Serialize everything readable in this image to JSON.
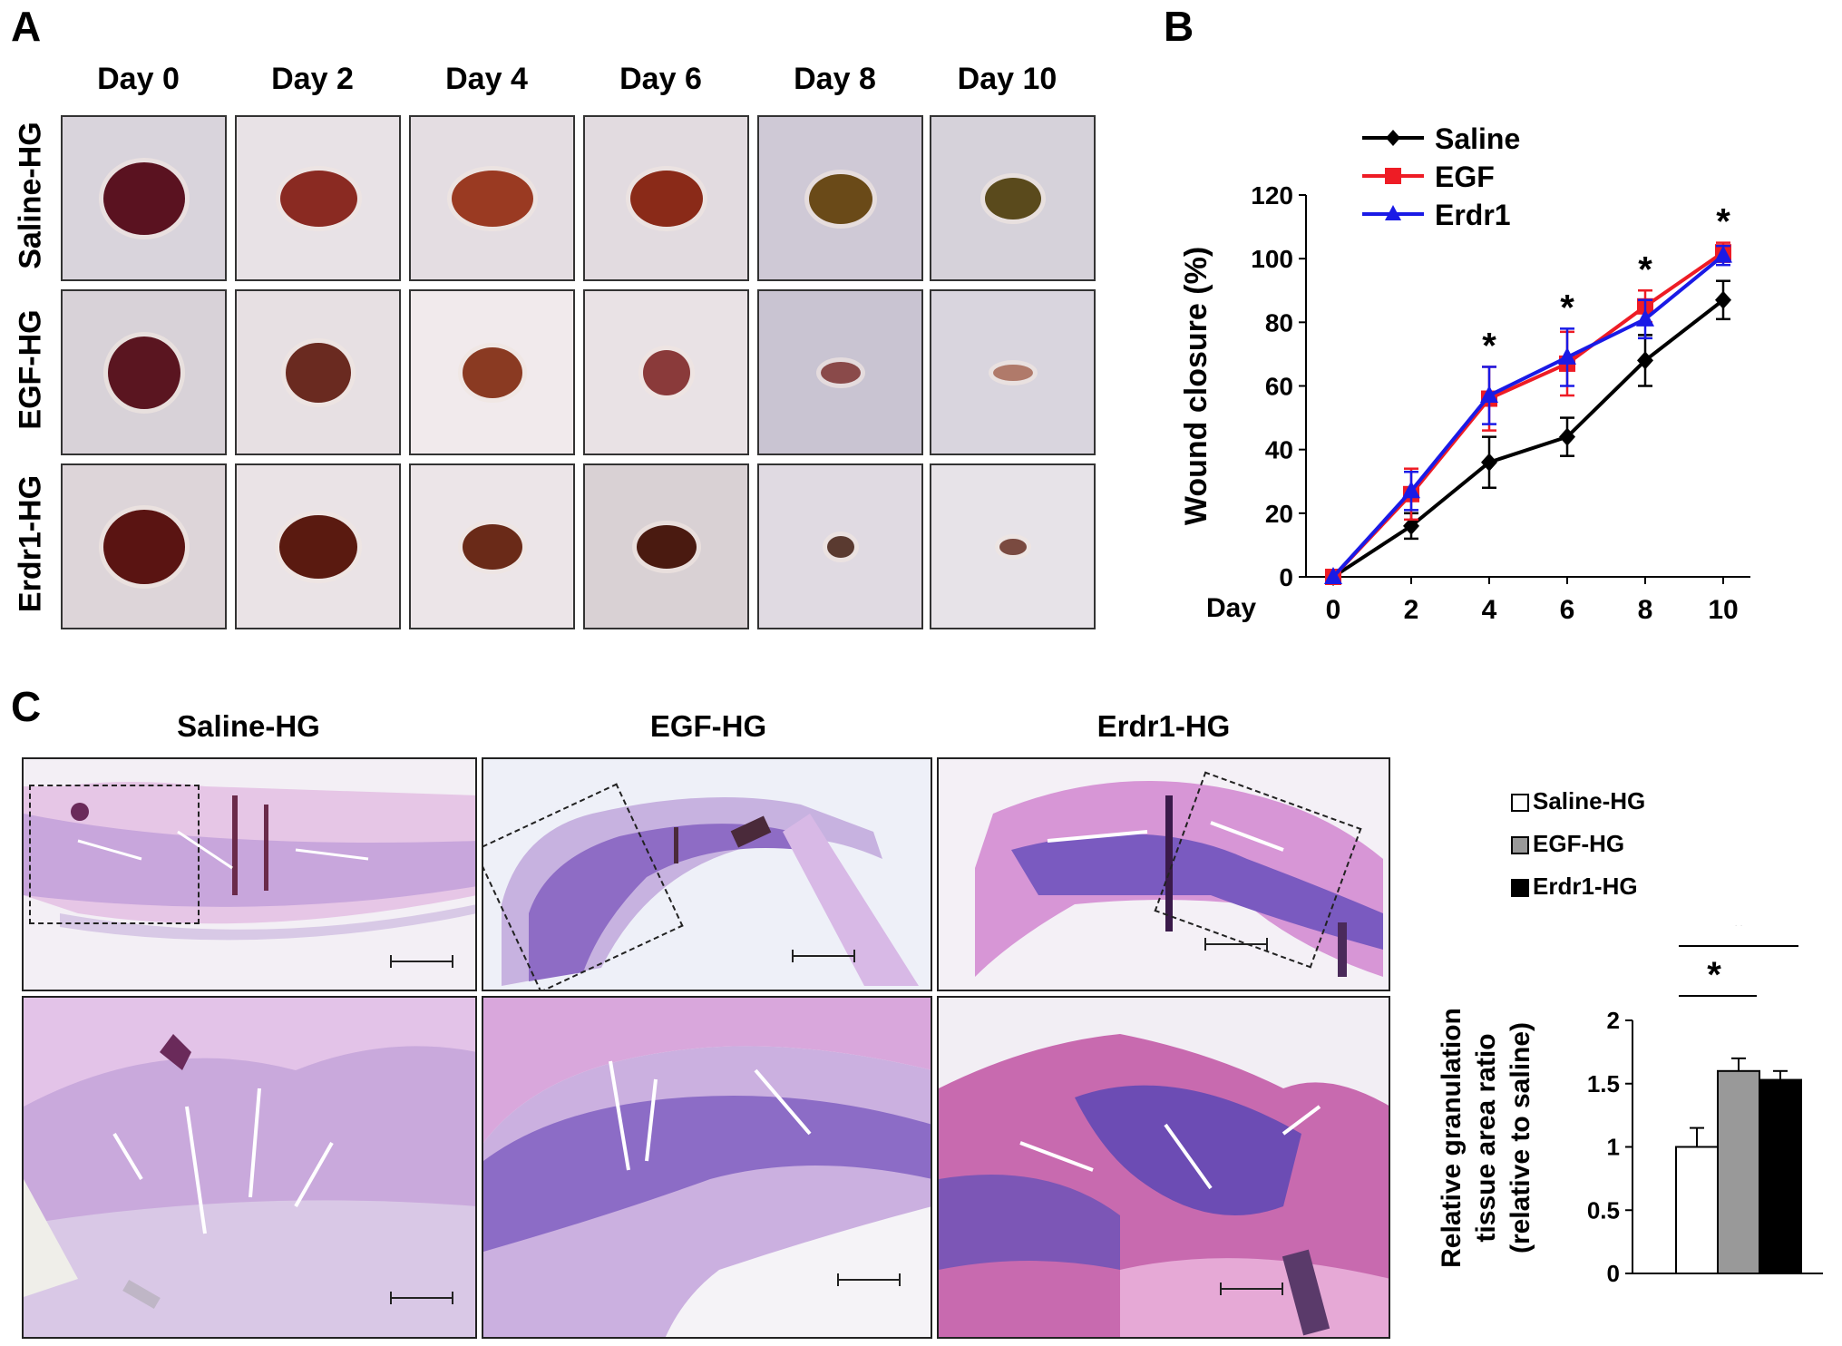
{
  "panel_a": {
    "letter": "A",
    "days": [
      "Day 0",
      "Day 2",
      "Day 4",
      "Day 6",
      "Day 8",
      "Day 10"
    ],
    "rows": [
      "Saline-HG",
      "EGF-HG",
      "Erdr1-HG"
    ]
  },
  "panel_b": {
    "letter": "B",
    "legend": [
      "Saline",
      "EGF",
      "Erdr1"
    ],
    "significance_marker": "*"
  },
  "panel_c": {
    "letter": "C",
    "titles": [
      "Saline-HG",
      "EGF-HG",
      "Erdr1-HG"
    ],
    "legend": [
      "Saline-HG",
      "EGF-HG",
      "Erdr1-HG"
    ],
    "significance_marker": "*"
  },
  "colors": {
    "saline": "#000000",
    "egf": "#ee1c25",
    "erdr1": "#1a1ae6",
    "bar_saline": "#ffffff",
    "bar_egf": "#999999",
    "bar_erdr1": "#000000",
    "stain_pink": "#d99ad0",
    "stain_purple": "#7c56b6"
  },
  "chart_data": [
    {
      "type": "line",
      "xlabel": "Day",
      "ylabel": "Wound closure (%)",
      "x": [
        0,
        2,
        4,
        6,
        8,
        10
      ],
      "ylim": [
        0,
        120
      ],
      "yticks": [
        0,
        20,
        40,
        60,
        80,
        100,
        120
      ],
      "legend_position": "top-left",
      "series": [
        {
          "name": "Saline",
          "marker": "diamond",
          "values": [
            0,
            16,
            36,
            44,
            68,
            87
          ],
          "error": [
            0,
            4,
            8,
            6,
            8,
            6
          ]
        },
        {
          "name": "EGF",
          "marker": "square",
          "values": [
            0,
            26,
            56,
            67,
            85,
            102
          ],
          "error": [
            0,
            8,
            10,
            10,
            5,
            3
          ]
        },
        {
          "name": "Erdr1",
          "marker": "triangle",
          "values": [
            0,
            27,
            57,
            69,
            81,
            101
          ],
          "error": [
            0,
            6,
            9,
            9,
            6,
            3
          ]
        }
      ],
      "significance_days": [
        4,
        6,
        8,
        10
      ]
    },
    {
      "type": "bar",
      "ylabel": "Relative granulation tissue area ratio (relative to saline)",
      "categories": [
        "Saline-HG",
        "EGF-HG",
        "Erdr1-HG"
      ],
      "values": [
        1.0,
        1.6,
        1.53
      ],
      "error": [
        0.15,
        0.1,
        0.07
      ],
      "ylim": [
        0,
        2
      ],
      "yticks": [
        0,
        0.5,
        1,
        1.5,
        2
      ],
      "yticklabels": [
        "0",
        "0.5",
        "1",
        "1.5",
        "2"
      ],
      "significance": [
        {
          "from": "Saline-HG",
          "to": "EGF-HG",
          "label": "*"
        },
        {
          "from": "Saline-HG",
          "to": "Erdr1-HG",
          "label": "*"
        }
      ]
    }
  ]
}
